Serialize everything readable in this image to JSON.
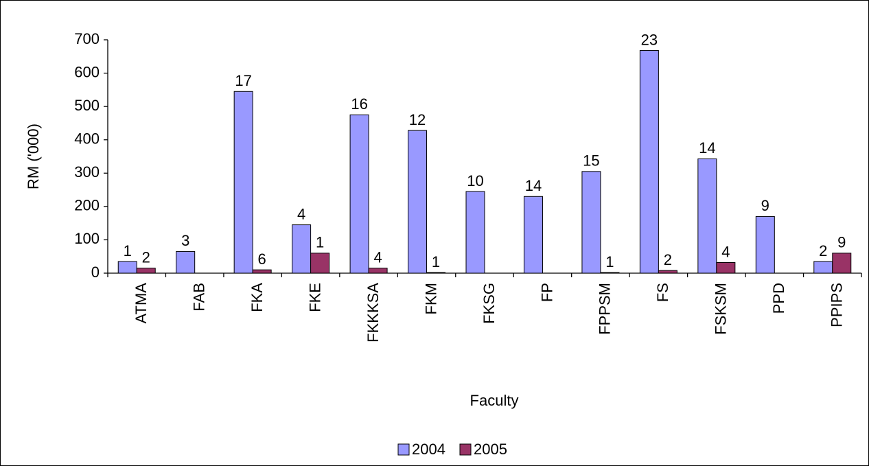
{
  "chart_data": {
    "type": "bar",
    "categories": [
      "ATMA",
      "FAB",
      "FKA",
      "FKE",
      "FKKKSA",
      "FKM",
      "FKSG",
      "FP",
      "FPPSM",
      "FS",
      "FSKSM",
      "PPD",
      "PPIPS"
    ],
    "series": [
      {
        "name": "2004",
        "color": "#9999ff",
        "values": [
          35,
          65,
          545,
          145,
          475,
          428,
          245,
          230,
          305,
          668,
          343,
          170,
          35
        ],
        "counts": [
          1,
          3,
          17,
          4,
          16,
          12,
          10,
          14,
          15,
          23,
          14,
          9,
          2
        ]
      },
      {
        "name": "2005",
        "color": "#993366",
        "values": [
          15,
          null,
          10,
          60,
          15,
          2,
          null,
          null,
          2,
          8,
          32,
          null,
          60
        ],
        "counts": [
          2,
          null,
          6,
          1,
          4,
          1,
          null,
          null,
          1,
          2,
          4,
          null,
          9
        ]
      }
    ],
    "xlabel": "Faculty",
    "ylabel": "RM ('000)",
    "ylim": [
      0,
      700
    ],
    "yticks": [
      0,
      100,
      200,
      300,
      400,
      500,
      600,
      700
    ],
    "legend": "bottom"
  }
}
